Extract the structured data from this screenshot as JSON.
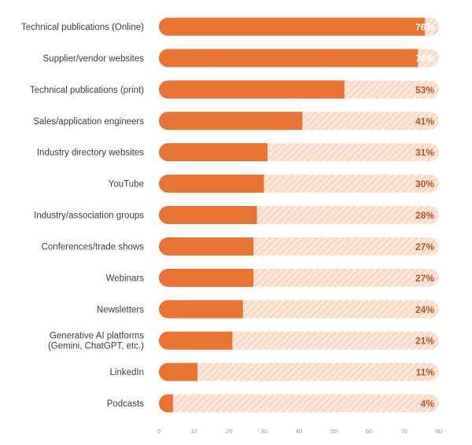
{
  "chart_data": {
    "type": "bar",
    "orientation": "horizontal",
    "categories": [
      "Technical publications (Online)",
      "Supplier/vendor websites",
      "Technical publications (print)",
      "Sales/application engineers",
      "Industry directory websites",
      "YouTube",
      "Industry/association groups",
      "Conferences/trade shows",
      "Webinars",
      "Newsletters",
      "Generative AI platforms (Gemini, ChatGPT, etc.)",
      "LinkedIn",
      "Podcasts"
    ],
    "category_lines": [
      [
        "Technical publications (Online)"
      ],
      [
        "Supplier/vendor websites"
      ],
      [
        "Technical publications (print)"
      ],
      [
        "Sales/application engineers"
      ],
      [
        "Industry directory websites"
      ],
      [
        "YouTube"
      ],
      [
        "Industry/association groups"
      ],
      [
        "Conferences/trade shows"
      ],
      [
        "Webinars"
      ],
      [
        "Newsletters"
      ],
      [
        "Generative AI platforms",
        "(Gemini, ChatGPT, etc.)"
      ],
      [
        "LinkedIn"
      ],
      [
        "Podcasts"
      ]
    ],
    "values": [
      76,
      74,
      53,
      41,
      31,
      30,
      28,
      27,
      27,
      24,
      21,
      11,
      4
    ],
    "value_labels": [
      "76%",
      "74%",
      "53%",
      "41%",
      "31%",
      "30%",
      "28%",
      "27%",
      "27%",
      "24%",
      "21%",
      "11%",
      "4%"
    ],
    "xlim": [
      0,
      80
    ],
    "xticks": [
      "0",
      "10",
      "20",
      "30",
      "40",
      "50",
      "60",
      "70",
      "80"
    ],
    "title": "",
    "xlabel": "",
    "ylabel": "",
    "grid": false,
    "legend": "none",
    "colors": {
      "bar": "#e87434",
      "track": "#fbe6da",
      "track_hatch": "#f6cfb8",
      "value_on_bar": "#ffffff",
      "value_on_track": "#b5552a",
      "category_text": "#3c3c3c",
      "tick_text": "#9a9a9a"
    }
  }
}
